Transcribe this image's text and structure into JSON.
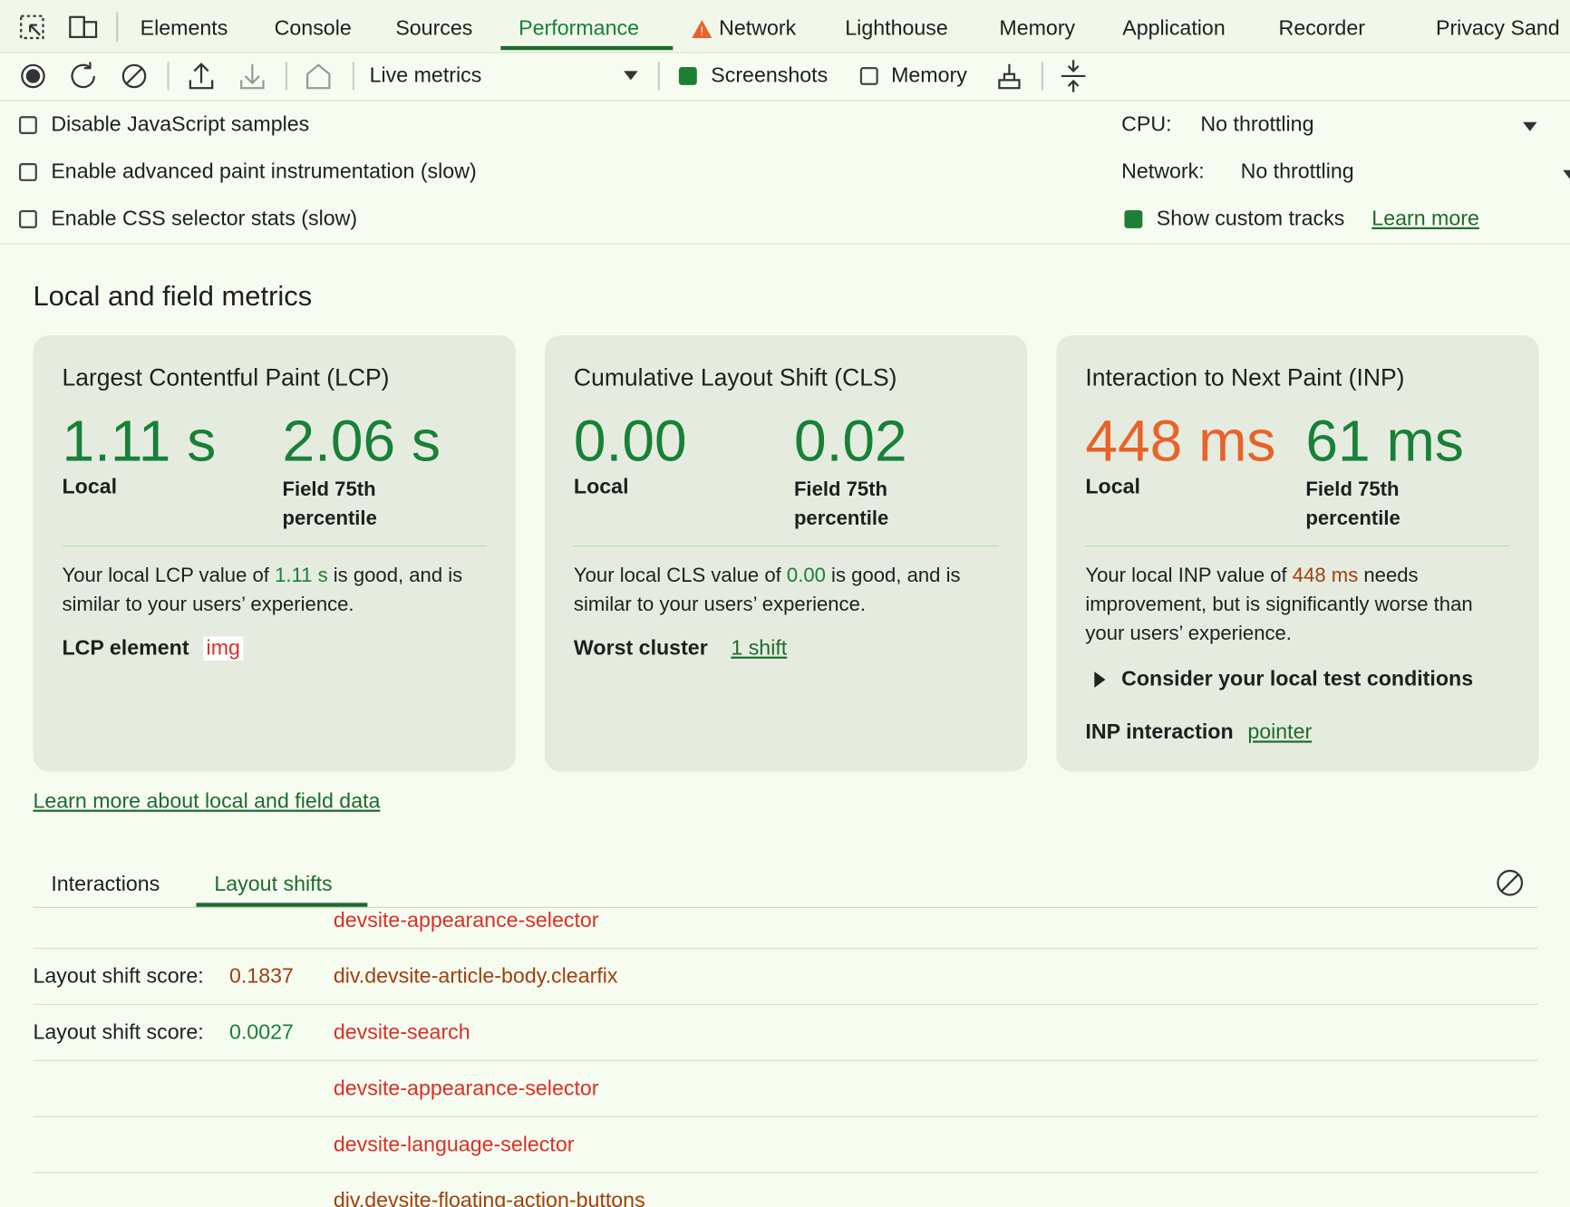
{
  "tabs": [
    "Elements",
    "Console",
    "Sources",
    "Performance",
    "Network",
    "Lighthouse",
    "Memory",
    "Application",
    "Recorder",
    "Privacy Sand"
  ],
  "toolbar": {
    "dropdown": "Live metrics",
    "screenshots": "Screenshots",
    "memory": "Memory"
  },
  "settings": {
    "left": [
      "Disable JavaScript samples",
      "Enable advanced paint instrumentation (slow)",
      "Enable CSS selector stats (slow)"
    ],
    "cpu_label": "CPU:",
    "cpu_value": "No throttling",
    "network_label": "Network:",
    "network_value": "No throttling",
    "custom_tracks": "Show custom tracks",
    "learn_more": "Learn more"
  },
  "section_title": "Local and field metrics",
  "cards": [
    {
      "title": "Largest Contentful Paint (LCP)",
      "local": "1.11 s",
      "local_label": "Local",
      "field": "2.06 s",
      "field_label": "Field 75th percentile",
      "desc_before": "Your local LCP value of ",
      "desc_after": " is good, and is similar to your users’ experience.",
      "extra_label": "LCP element",
      "extra_value": "img"
    },
    {
      "title": "Cumulative Layout Shift (CLS)",
      "local": "0.00",
      "local_label": "Local",
      "field": "0.02",
      "field_label": "Field 75th percentile",
      "desc_before": "Your local CLS value of ",
      "desc_after": " is good, and is similar to your users’ experience.",
      "extra_label": "Worst cluster",
      "extra_value": "1 shift"
    },
    {
      "title": "Interaction to Next Paint (INP)",
      "local": "448 ms",
      "local_label": "Local",
      "field": "61 ms",
      "field_label": "Field 75th percentile",
      "desc_before": "Your local INP value of ",
      "desc_after": " needs improvement, but is significantly worse than your users’ experience.",
      "details": "Consider your local test conditions",
      "extra_label": "INP interaction",
      "extra_value": "pointer"
    }
  ],
  "learn_link": "Learn more about local and field data",
  "bottom_tabs": [
    "Interactions",
    "Layout shifts"
  ],
  "rows": [
    {
      "element": "devsite-appearance-selector"
    },
    {
      "label": "Layout shift score:",
      "score": "0.1837",
      "element": "div.devsite-article-body.clearfix"
    },
    {
      "label": "Layout shift score:",
      "score": "0.0027",
      "element": "devsite-search"
    },
    {
      "element": "devsite-appearance-selector"
    },
    {
      "element": "devsite-language-selector"
    },
    {
      "element": "div.devsite-floating-action-buttons"
    }
  ]
}
